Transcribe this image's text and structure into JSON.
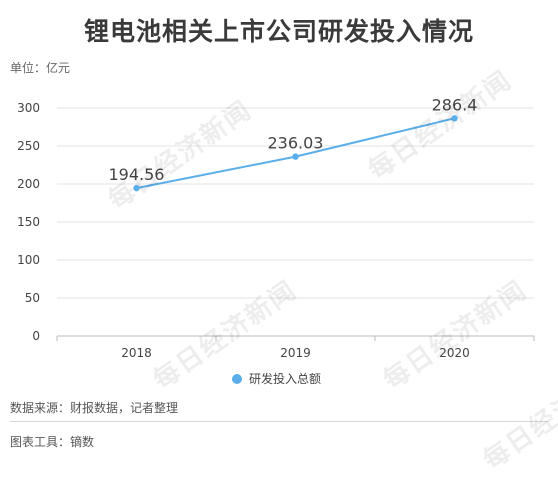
{
  "title": "锂电池相关上市公司研发投入情况",
  "unit_label": "单位：亿元",
  "source": "数据来源：财报数据，记者整理",
  "tool": "图表工具：镝数",
  "watermark": "每日经济新闻",
  "chart_data": {
    "type": "line",
    "title": "锂电池相关上市公司研发投入情况",
    "categories": [
      "2018",
      "2019",
      "2020"
    ],
    "series": [
      {
        "name": "研发投入总额",
        "values": [
          194.56,
          236.03,
          286.4
        ],
        "labels": [
          "194.56",
          "236.03",
          "286.4"
        ],
        "color": "#5aaeea"
      }
    ],
    "ylim": [
      0,
      300
    ],
    "yticks": [
      0,
      50,
      100,
      150,
      200,
      250,
      300
    ],
    "grid": true,
    "legend_position": "bottom"
  }
}
